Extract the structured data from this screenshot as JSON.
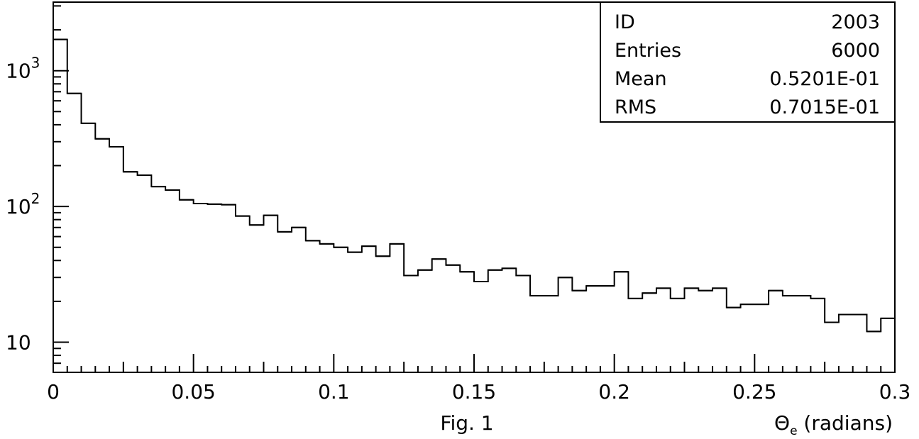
{
  "chart_data": {
    "type": "histogram",
    "title": "",
    "caption": "Fig. 1",
    "xlabel": {
      "symbol": "Θ",
      "subscript": "e",
      "unit": " (radians)"
    },
    "ylabel": "",
    "y_scale": "log",
    "xlim": [
      0,
      0.3
    ],
    "ylim": [
      6,
      3200
    ],
    "bin_width": 0.005,
    "x_ticks": [
      {
        "value": 0,
        "label": "0"
      },
      {
        "value": 0.05,
        "label": "0.05"
      },
      {
        "value": 0.1,
        "label": "0.1"
      },
      {
        "value": 0.15,
        "label": "0.15"
      },
      {
        "value": 0.2,
        "label": "0.2"
      },
      {
        "value": 0.25,
        "label": "0.25"
      },
      {
        "value": 0.3,
        "label": "0.3"
      }
    ],
    "y_ticks": [
      {
        "value": 10,
        "label": "10"
      },
      {
        "value": 100,
        "base": "10",
        "exp": "2"
      },
      {
        "value": 1000,
        "base": "10",
        "exp": "3"
      }
    ],
    "bin_edges_start": 0,
    "values": [
      1700,
      680,
      410,
      315,
      275,
      180,
      170,
      140,
      132,
      112,
      105,
      104,
      103,
      85,
      73,
      86,
      65,
      70,
      56,
      53,
      50,
      46,
      51,
      43,
      53,
      31,
      34,
      41,
      37,
      33,
      28,
      34,
      35,
      31,
      22,
      22,
      30,
      24,
      26,
      26,
      33,
      21,
      23,
      25,
      21,
      25,
      24,
      25,
      18,
      19,
      19,
      24,
      22,
      22,
      21,
      14,
      16,
      16,
      12,
      15
    ],
    "stats_box": {
      "position": "top-right",
      "rows": [
        {
          "label": "ID",
          "value": "2003"
        },
        {
          "label": "Entries",
          "value": "6000"
        },
        {
          "label": "Mean",
          "value": "0.5201E-01"
        },
        {
          "label": "RMS",
          "value": "0.7015E-01"
        }
      ]
    },
    "grid": false,
    "legend": "none"
  }
}
